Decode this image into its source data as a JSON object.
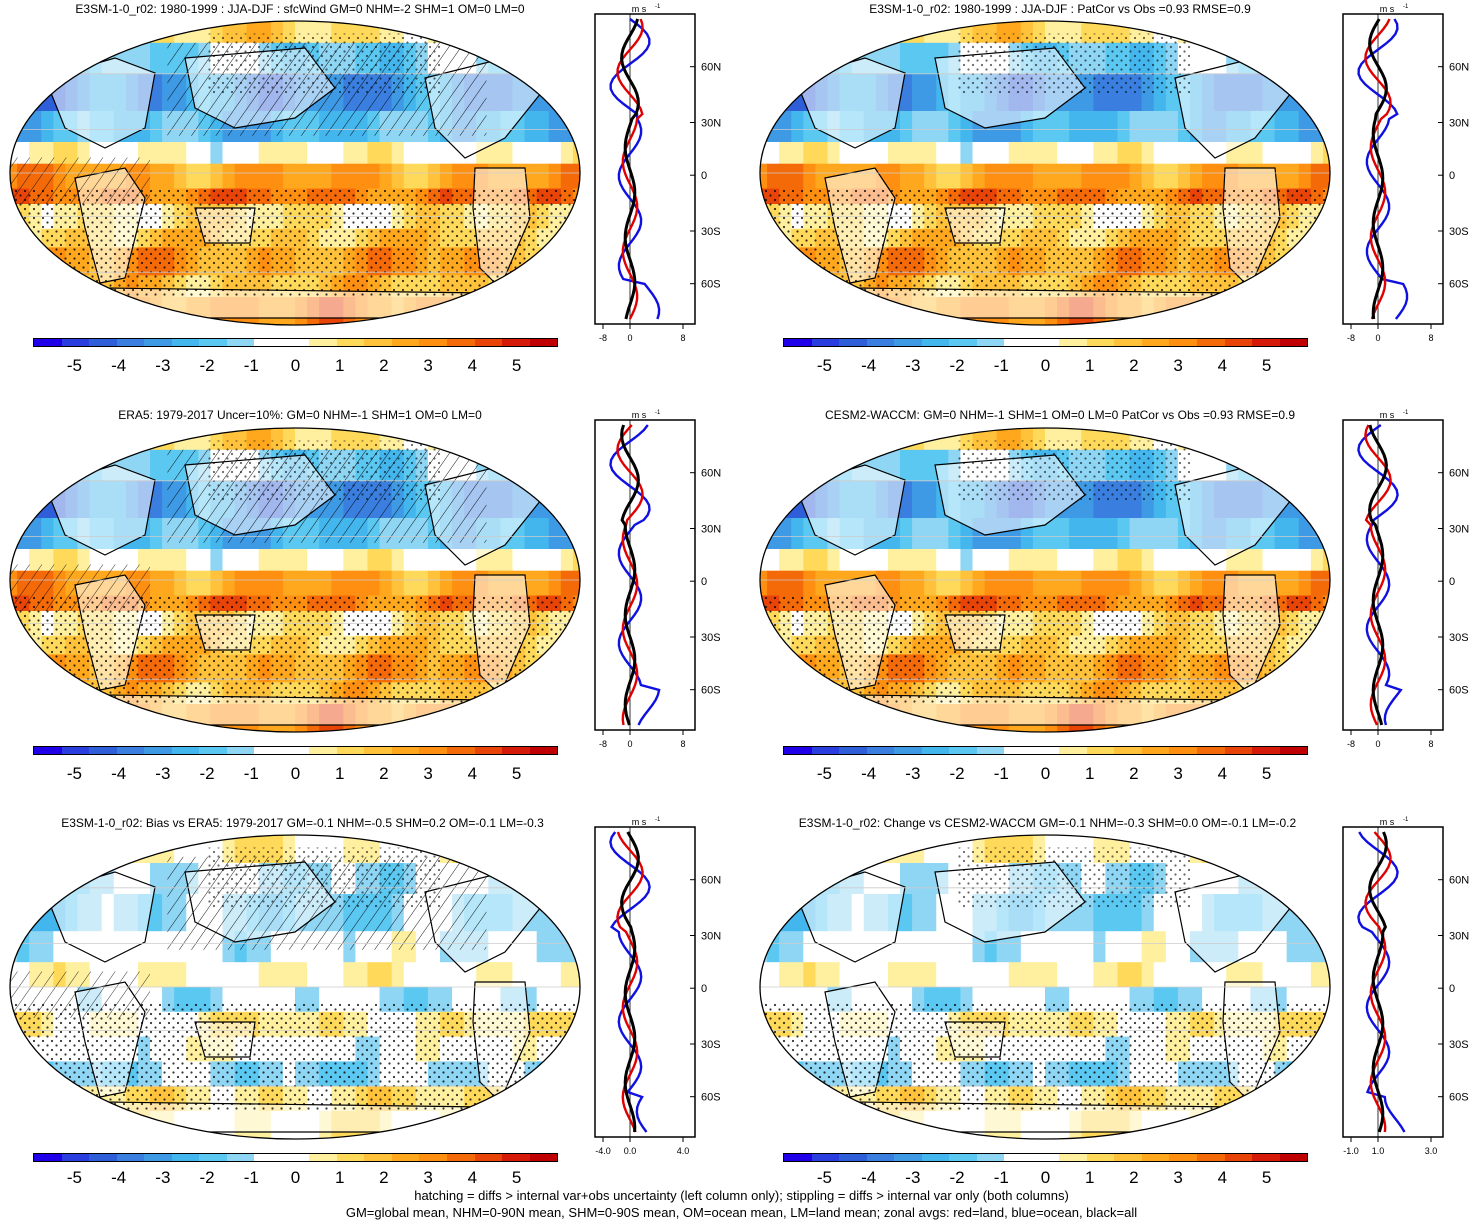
{
  "panels": [
    {
      "title": "E3SM-1-0_r02: 1980-1999 : JJA-DJF : sfcWind GM=0 NHM=-2 SHM=1 OM=0 LM=0",
      "hatch": true,
      "style": "strong"
    },
    {
      "title": "E3SM-1-0_r02: 1980-1999 : JJA-DJF : PatCor vs Obs =0.93 RMSE=0.9",
      "hatch": false,
      "style": "strong"
    },
    {
      "title": "ERA5: 1979-2017 Uncer=10%: GM=0 NHM=-1 SHM=1 OM=0 LM=0",
      "hatch": true,
      "style": "strong"
    },
    {
      "title": "CESM2-WACCM: GM=0 NHM=-1 SHM=1 OM=0 LM=0 PatCor vs Obs =0.93 RMSE=0.9",
      "hatch": false,
      "style": "strong"
    },
    {
      "title": "E3SM-1-0_r02: Bias vs ERA5: 1979-2017 GM=-0.1 NHM=-0.5 SHM=0.2 OM=-0.1 LM=-0.3",
      "hatch": true,
      "style": "weak"
    },
    {
      "title": "E3SM-1-0_r02: Change vs CESM2-WACCM GM=-0.1 NHM=-0.3 SHM=0.0 OM=-0.1 LM=-0.2",
      "hatch": false,
      "style": "weak"
    }
  ],
  "colorbar": {
    "colors": [
      "#1f00e8",
      "#2a3ee0",
      "#2f5fd8",
      "#3a7fe0",
      "#3f9ae6",
      "#44b6ee",
      "#5bc8f2",
      "#8ed6f4",
      "#ffffff",
      "#ffffff",
      "#fff0a0",
      "#ffd95a",
      "#ffc23a",
      "#ffa81e",
      "#ff8f10",
      "#f56a08",
      "#e84408",
      "#d61a0a",
      "#c00000"
    ],
    "labels": [
      "-5",
      "-4",
      "-3",
      "-2",
      "-1",
      "0",
      "1",
      "2",
      "3",
      "4",
      "5"
    ]
  },
  "zonal": {
    "units": "m s",
    "units_sup": "-1",
    "lat_labels": [
      "60N",
      "30N",
      "0",
      "30S",
      "60S"
    ],
    "x_labels_std": [
      "-8",
      "0",
      "8"
    ],
    "x_labels_bias": [
      "-4.0",
      "0.0",
      "4.0"
    ],
    "x_labels_change": [
      "-1.0",
      "1.0",
      "3.0"
    ],
    "series_colors": {
      "land": "#e00000",
      "ocean": "#1010e0",
      "all": "#000000"
    }
  },
  "footer": {
    "line1": "hatching = diffs > internal var+obs uncertainty (left column only); stippling = diffs > internal var only (both columns)",
    "line2": "GM=global mean, NHM=0-90N mean, SHM=0-90S mean, OM=ocean mean, LM=land mean; zonal avgs: red=land, blue=ocean, black=all"
  }
}
